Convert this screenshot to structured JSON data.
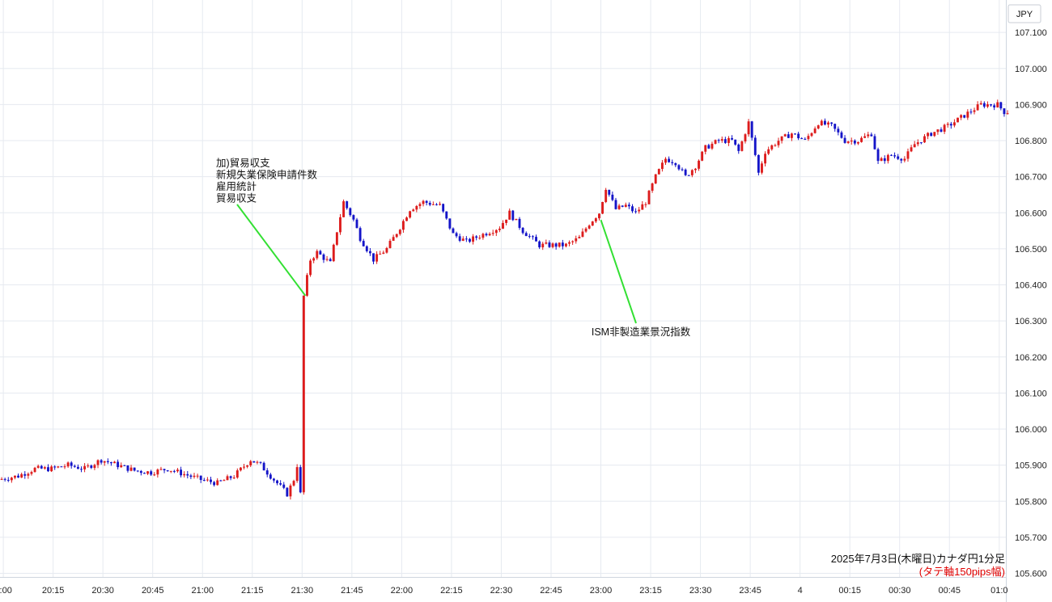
{
  "currency_label": "JPY",
  "caption": {
    "title": "2025年7月3日(木曜日)カナダ円1分足",
    "subtitle": "(タテ軸150pips幅)"
  },
  "colors": {
    "up": "#dd1c1c",
    "down": "#1414c8",
    "annotation": "#33e033",
    "grid": "#e6eaf0"
  },
  "chart_data": {
    "type": "candlestick",
    "title": "",
    "timeframe": "1分足",
    "xlabel": "",
    "ylabel": "",
    "x_ticks": [
      "0:00",
      "20:15",
      "20:30",
      "20:45",
      "21:00",
      "21:15",
      "21:30",
      "21:45",
      "22:00",
      "22:15",
      "22:30",
      "22:45",
      "23:00",
      "23:15",
      "23:30",
      "23:45",
      "4",
      "00:15",
      "00:30",
      "00:45",
      "01:0"
    ],
    "y_ticks": [
      "107.100",
      "107.000",
      "106.900",
      "106.800",
      "106.700",
      "106.600",
      "106.500",
      "106.400",
      "106.300",
      "106.200",
      "106.100",
      "106.000",
      "105.900",
      "105.800",
      "105.700",
      "105.600"
    ],
    "ylim": [
      105.59,
      107.19
    ],
    "x_range": [
      "19:59",
      "01:02"
    ],
    "grid": true,
    "path": [
      [
        "19:59",
        105.86
      ],
      [
        "20:05",
        105.87
      ],
      [
        "20:10",
        105.89
      ],
      [
        "20:15",
        105.89
      ],
      [
        "20:20",
        105.9
      ],
      [
        "20:25",
        105.89
      ],
      [
        "20:30",
        105.915
      ],
      [
        "20:35",
        105.9
      ],
      [
        "20:40",
        105.885
      ],
      [
        "20:45",
        105.88
      ],
      [
        "20:50",
        105.89
      ],
      [
        "20:55",
        105.875
      ],
      [
        "21:00",
        105.86
      ],
      [
        "21:05",
        105.85
      ],
      [
        "21:10",
        105.87
      ],
      [
        "21:15",
        105.915
      ],
      [
        "21:18",
        105.9
      ],
      [
        "21:22",
        105.86
      ],
      [
        "21:26",
        105.82
      ],
      [
        "21:28",
        105.86
      ],
      [
        "21:29",
        105.9
      ],
      [
        "21:30",
        105.82
      ],
      [
        "21:31",
        106.37
      ],
      [
        "21:33",
        106.47
      ],
      [
        "21:35",
        106.49
      ],
      [
        "21:39",
        106.46
      ],
      [
        "21:41",
        106.55
      ],
      [
        "21:43",
        106.63
      ],
      [
        "21:46",
        106.58
      ],
      [
        "21:48",
        106.53
      ],
      [
        "21:52",
        106.47
      ],
      [
        "21:56",
        106.5
      ],
      [
        "22:00",
        106.56
      ],
      [
        "22:03",
        106.61
      ],
      [
        "22:07",
        106.63
      ],
      [
        "22:12",
        106.62
      ],
      [
        "22:16",
        106.54
      ],
      [
        "22:20",
        106.52
      ],
      [
        "22:25",
        106.54
      ],
      [
        "22:30",
        106.56
      ],
      [
        "22:33",
        106.6
      ],
      [
        "22:37",
        106.55
      ],
      [
        "22:42",
        106.51
      ],
      [
        "22:47",
        106.51
      ],
      [
        "22:50",
        106.51
      ],
      [
        "22:54",
        106.53
      ],
      [
        "22:57",
        106.57
      ],
      [
        "23:00",
        106.6
      ],
      [
        "23:02",
        106.67
      ],
      [
        "23:05",
        106.61
      ],
      [
        "23:08",
        106.62
      ],
      [
        "23:11",
        106.6
      ],
      [
        "23:14",
        106.63
      ],
      [
        "23:17",
        106.7
      ],
      [
        "23:20",
        106.75
      ],
      [
        "23:23",
        106.74
      ],
      [
        "23:26",
        106.7
      ],
      [
        "23:29",
        106.73
      ],
      [
        "23:32",
        106.78
      ],
      [
        "23:36",
        106.8
      ],
      [
        "23:40",
        106.8
      ],
      [
        "23:42",
        106.77
      ],
      [
        "23:45",
        106.85
      ],
      [
        "23:47",
        106.76
      ],
      [
        "23:48",
        106.71
      ],
      [
        "23:50",
        106.77
      ],
      [
        "23:54",
        106.8
      ],
      [
        "23:58",
        106.82
      ],
      [
        "00:02",
        106.8
      ],
      [
        "00:06",
        106.85
      ],
      [
        "00:10",
        106.84
      ],
      [
        "00:14",
        106.8
      ],
      [
        "00:18",
        106.8
      ],
      [
        "00:22",
        106.82
      ],
      [
        "00:24",
        106.74
      ],
      [
        "00:28",
        106.76
      ],
      [
        "00:32",
        106.75
      ],
      [
        "00:35",
        106.79
      ],
      [
        "00:40",
        106.82
      ],
      [
        "00:45",
        106.84
      ],
      [
        "00:50",
        106.87
      ],
      [
        "00:55",
        106.9
      ],
      [
        "01:00",
        106.9
      ],
      [
        "01:02",
        106.88
      ]
    ],
    "annotations": [
      {
        "lines": [
          "加)貿易収支",
          "新規失業保険申請件数",
          "雇用統計",
          "貿易収支"
        ],
        "time": "21:31",
        "price": 106.37
      },
      {
        "lines": [
          "ISM非製造業景況指数"
        ],
        "time": "23:00",
        "price": 106.58
      }
    ]
  }
}
